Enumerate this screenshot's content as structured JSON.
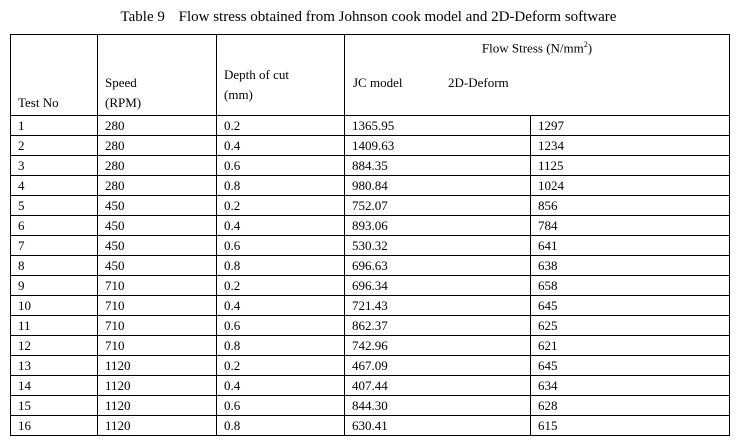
{
  "caption": {
    "number": "Table 9",
    "title": "Flow stress obtained from Johnson cook model and 2D-Deform software"
  },
  "headers": {
    "test_no": "Test No",
    "speed_line1": "Speed",
    "speed_line2": "(RPM)",
    "depth_line1": "Depth of cut",
    "depth_line2": "(mm)",
    "flow_stress": "Flow Stress (N/mm",
    "flow_stress_sup": "2",
    "flow_stress_close": ")",
    "jc_model": "JC model",
    "deform_2d": "2D-Deform"
  },
  "rows": [
    {
      "test": "1",
      "speed": "280",
      "depth": "0.2",
      "jc": "1365.95",
      "deform": "1297"
    },
    {
      "test": "2",
      "speed": "280",
      "depth": "0.4",
      "jc": "1409.63",
      "deform": "1234"
    },
    {
      "test": "3",
      "speed": "280",
      "depth": "0.6",
      "jc": "884.35",
      "deform": "1125"
    },
    {
      "test": "4",
      "speed": "280",
      "depth": "0.8",
      "jc": "980.84",
      "deform": "1024"
    },
    {
      "test": "5",
      "speed": "450",
      "depth": "0.2",
      "jc": "752.07",
      "deform": "856"
    },
    {
      "test": "6",
      "speed": "450",
      "depth": "0.4",
      "jc": "893.06",
      "deform": "784"
    },
    {
      "test": "7",
      "speed": "450",
      "depth": "0.6",
      "jc": "530.32",
      "deform": "641"
    },
    {
      "test": "8",
      "speed": "450",
      "depth": "0.8",
      "jc": "696.63",
      "deform": "638"
    },
    {
      "test": "9",
      "speed": "710",
      "depth": "0.2",
      "jc": "696.34",
      "deform": "658"
    },
    {
      "test": "10",
      "speed": "710",
      "depth": "0.4",
      "jc": "721.43",
      "deform": "645"
    },
    {
      "test": "11",
      "speed": "710",
      "depth": "0.6",
      "jc": "862.37",
      "deform": "625"
    },
    {
      "test": "12",
      "speed": "710",
      "depth": "0.8",
      "jc": "742.96",
      "deform": "621"
    },
    {
      "test": "13",
      "speed": "1120",
      "depth": "0.2",
      "jc": "467.09",
      "deform": "645"
    },
    {
      "test": "14",
      "speed": "1120",
      "depth": "0.4",
      "jc": "407.44",
      "deform": "634"
    },
    {
      "test": "15",
      "speed": "1120",
      "depth": "0.6",
      "jc": "844.30",
      "deform": "628"
    },
    {
      "test": "16",
      "speed": "1120",
      "depth": "0.8",
      "jc": "630.41",
      "deform": "615"
    }
  ]
}
